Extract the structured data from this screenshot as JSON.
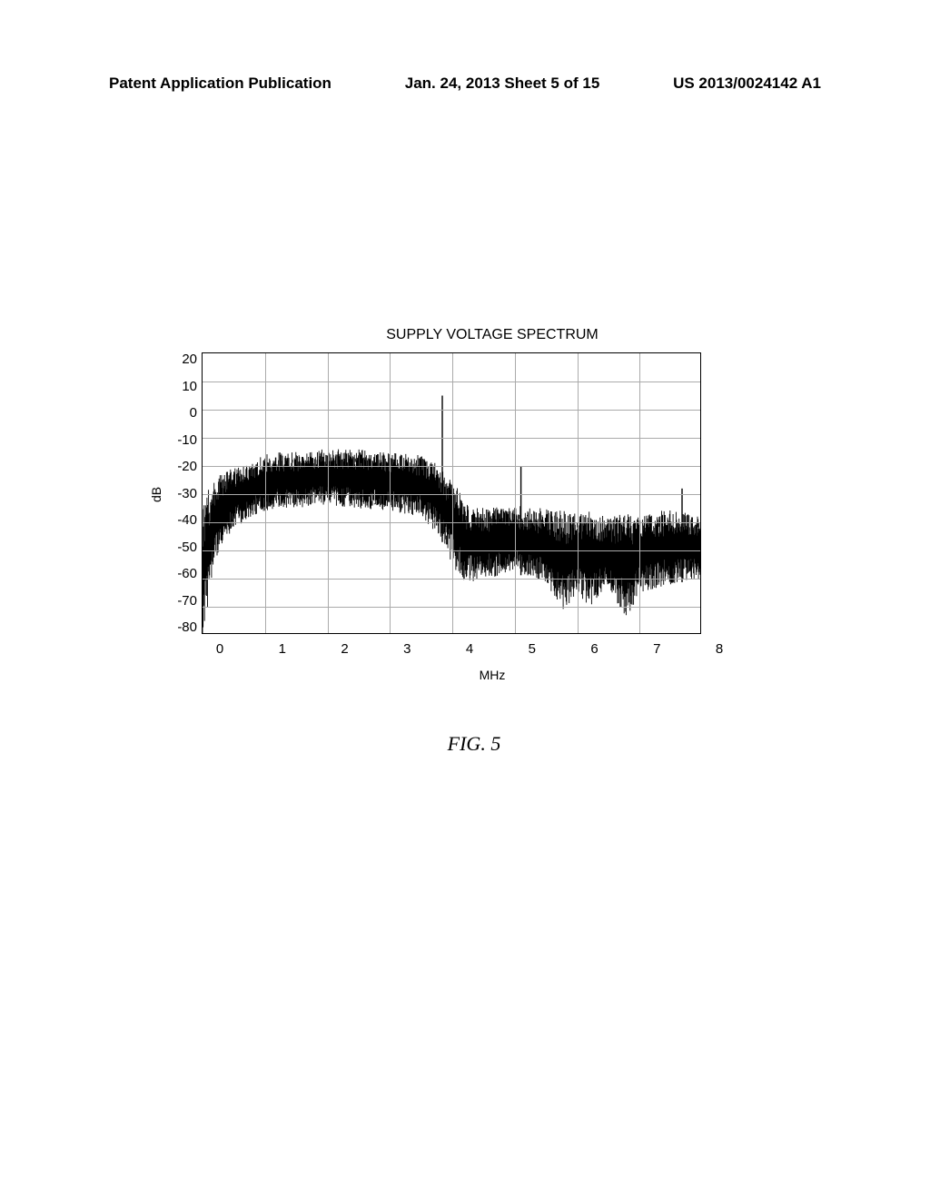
{
  "header": {
    "left": "Patent Application Publication",
    "middle": "Jan. 24, 2013  Sheet 5 of 15",
    "right": "US 2013/0024142 A1"
  },
  "chart": {
    "type": "spectrum",
    "title": "SUPPLY VOLTAGE SPECTRUM",
    "ylabel": "dB",
    "xlabel": "MHz",
    "y_ticks": [
      "20",
      "10",
      "0",
      "-10",
      "-20",
      "-30",
      "-40",
      "-50",
      "-60",
      "-70",
      "-80"
    ],
    "x_ticks": [
      "0",
      "1",
      "2",
      "3",
      "4",
      "5",
      "6",
      "7",
      "8"
    ],
    "ylim": [
      -80,
      20
    ],
    "xlim": [
      0,
      8
    ],
    "grid_color": "#aaaaaa",
    "background_color": "#ffffff",
    "trace_color": "#000000",
    "caption": "FIG. 5",
    "noise_data": {
      "envelope": [
        [
          0.0,
          -35,
          -80
        ],
        [
          0.1,
          -28,
          -68
        ],
        [
          0.2,
          -24,
          -55
        ],
        [
          0.3,
          -22,
          -48
        ],
        [
          0.5,
          -20,
          -42
        ],
        [
          0.8,
          -18,
          -38
        ],
        [
          1.0,
          -16,
          -36
        ],
        [
          1.2,
          -15,
          -35
        ],
        [
          1.5,
          -15,
          -35
        ],
        [
          2.0,
          -14,
          -34
        ],
        [
          2.5,
          -14,
          -35
        ],
        [
          3.0,
          -15,
          -36
        ],
        [
          3.5,
          -16,
          -38
        ],
        [
          3.8,
          -20,
          -45
        ],
        [
          4.0,
          -25,
          -55
        ],
        [
          4.2,
          -32,
          -62
        ],
        [
          4.5,
          -35,
          -60
        ],
        [
          5.0,
          -34,
          -58
        ],
        [
          5.5,
          -35,
          -62
        ],
        [
          5.8,
          -36,
          -72
        ],
        [
          6.0,
          -37,
          -65
        ],
        [
          6.2,
          -36,
          -70
        ],
        [
          6.5,
          -38,
          -64
        ],
        [
          6.8,
          -37,
          -74
        ],
        [
          7.0,
          -38,
          -65
        ],
        [
          7.5,
          -35,
          -62
        ],
        [
          8.0,
          -38,
          -60
        ]
      ],
      "spikes": [
        [
          3.84,
          5
        ],
        [
          5.1,
          -20
        ],
        [
          7.68,
          -28
        ]
      ]
    }
  }
}
